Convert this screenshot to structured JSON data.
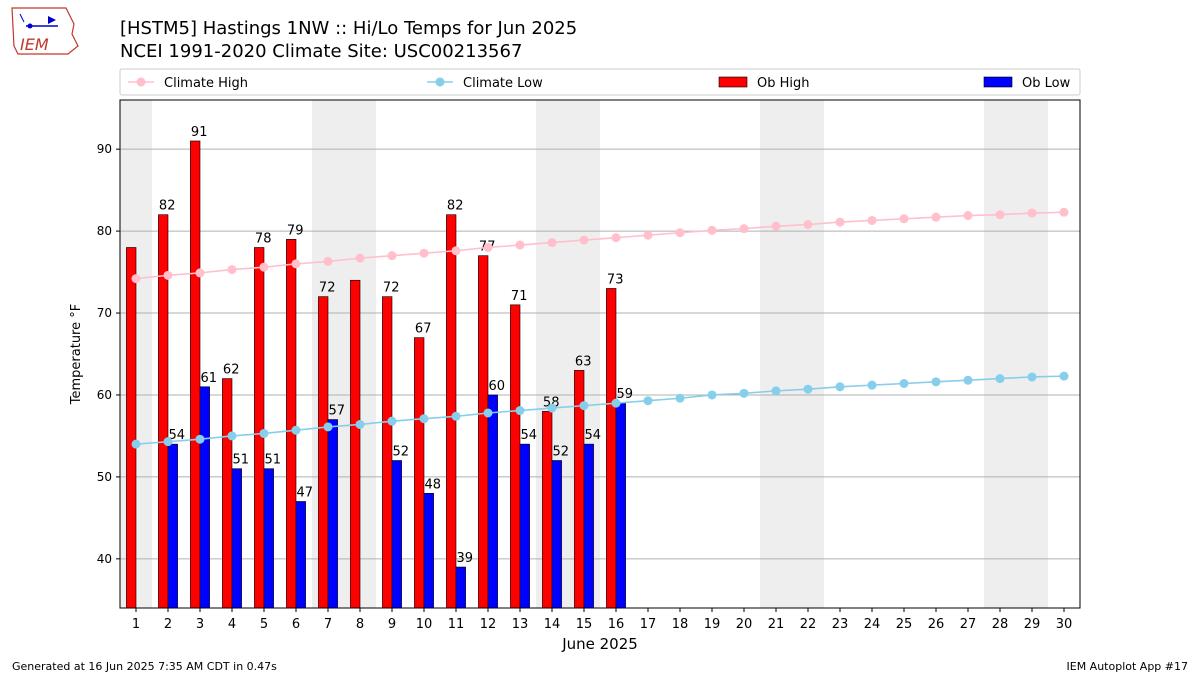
{
  "header": {
    "title_line1": "[HSTM5] Hastings 1NW :: Hi/Lo Temps for Jun 2025",
    "title_line2": "NCEI 1991-2020 Climate Site: USC00213567",
    "logo_text": "IEM"
  },
  "footer": {
    "generated": "Generated at 16 Jun 2025 7:35 AM CDT in 0.47s",
    "app": "IEM Autoplot App #17"
  },
  "chart_data": {
    "type": "bar",
    "xlabel": "June 2025",
    "ylabel": "Temperature °F",
    "ylim": [
      34,
      96
    ],
    "xlim": [
      0.5,
      30.5
    ],
    "yticks": [
      40,
      50,
      60,
      70,
      80,
      90
    ],
    "grid": true,
    "legend_position": "top",
    "weekend_shading_days": [
      1,
      7,
      8,
      14,
      15,
      21,
      22,
      28,
      29
    ],
    "days": [
      1,
      2,
      3,
      4,
      5,
      6,
      7,
      8,
      9,
      10,
      11,
      12,
      13,
      14,
      15,
      16,
      17,
      18,
      19,
      20,
      21,
      22,
      23,
      24,
      25,
      26,
      27,
      28,
      29,
      30
    ],
    "series": [
      {
        "name": "Climate High",
        "kind": "line",
        "color": "#ffc0cb",
        "values": [
          74.2,
          74.6,
          74.9,
          75.3,
          75.6,
          76.0,
          76.3,
          76.7,
          77.0,
          77.3,
          77.6,
          78.0,
          78.3,
          78.6,
          78.9,
          79.2,
          79.5,
          79.8,
          80.1,
          80.3,
          80.6,
          80.8,
          81.1,
          81.3,
          81.5,
          81.7,
          81.9,
          82.0,
          82.2,
          82.3
        ]
      },
      {
        "name": "Climate Low",
        "kind": "line",
        "color": "#87ceeb",
        "values": [
          54.0,
          54.3,
          54.6,
          55.0,
          55.3,
          55.7,
          56.1,
          56.4,
          56.8,
          57.1,
          57.4,
          57.8,
          58.1,
          58.4,
          58.7,
          59.0,
          59.3,
          59.6,
          60.0,
          60.2,
          60.5,
          60.7,
          61.0,
          61.2,
          61.4,
          61.6,
          61.8,
          62.0,
          62.2,
          62.3
        ]
      },
      {
        "name": "Ob High",
        "kind": "bar",
        "color": "#ff0000",
        "values": [
          78,
          82,
          91,
          62,
          78,
          79,
          72,
          74,
          72,
          67,
          82,
          77,
          71,
          58,
          63,
          73
        ],
        "labels": [
          null,
          "82",
          "91",
          "62",
          "78",
          "79",
          "72",
          null,
          "72",
          "67",
          "82",
          "77",
          "71",
          "58",
          "63",
          "73"
        ]
      },
      {
        "name": "Ob Low",
        "kind": "bar",
        "color": "#0000ff",
        "values": [
          null,
          54,
          61,
          51,
          51,
          47,
          57,
          null,
          52,
          48,
          39,
          60,
          54,
          52,
          54,
          59
        ],
        "labels": [
          null,
          "54",
          "61",
          "51",
          "51",
          "47",
          "57",
          null,
          "52",
          "48",
          "39",
          "60",
          "54",
          "52",
          "54",
          "59"
        ]
      }
    ]
  }
}
